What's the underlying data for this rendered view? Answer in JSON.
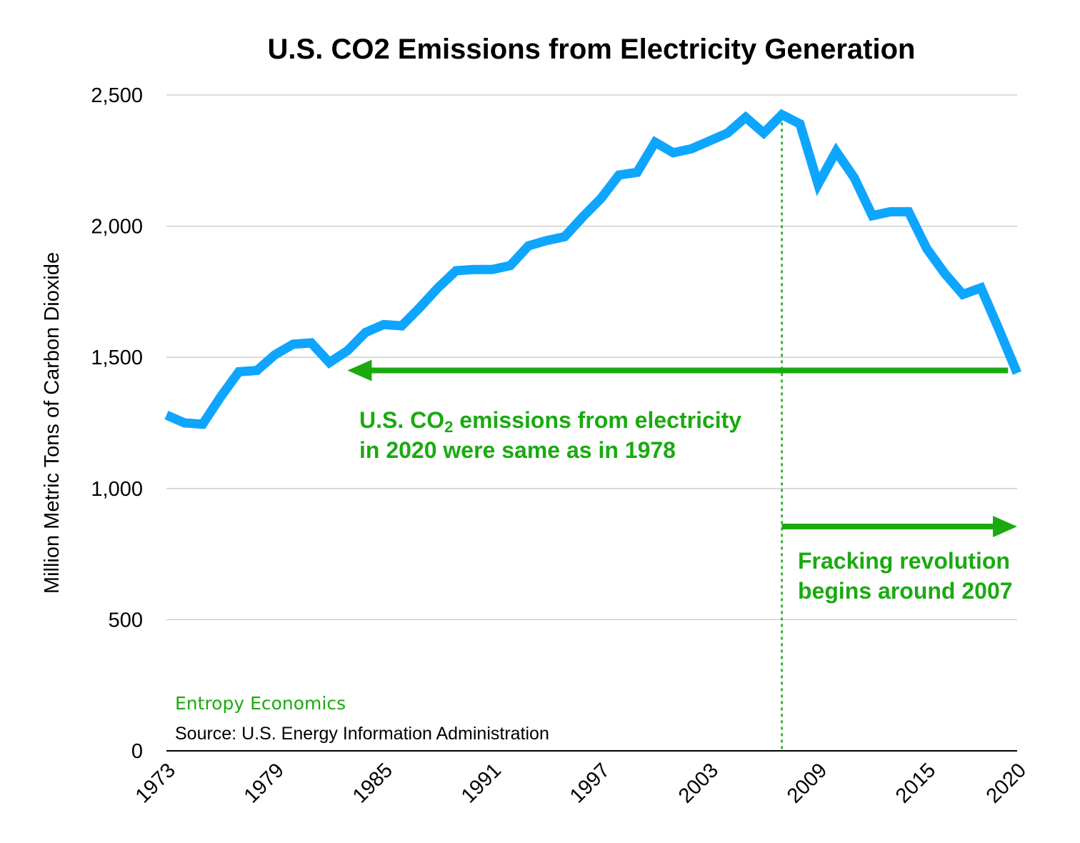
{
  "chart_data": {
    "type": "line",
    "title": "U.S. CO2 Emissions from Electricity Generation",
    "xlabel": "",
    "ylabel": "Million Metric Tons of Carbon Dioxide",
    "ylim": [
      0,
      2500
    ],
    "xlim": [
      1973,
      2020
    ],
    "yticks": [
      0,
      500,
      1000,
      1500,
      2000,
      2500
    ],
    "ytick_labels": [
      "0",
      "500",
      "1,000",
      "1,500",
      "2,000",
      "2,500"
    ],
    "xticks": [
      1973,
      1979,
      1985,
      1991,
      1997,
      2003,
      2009,
      2015,
      2020
    ],
    "xtick_labels": [
      "1973",
      "1979",
      "1985",
      "1991",
      "1997",
      "2003",
      "2009",
      "2015",
      "2020"
    ],
    "grid": "horizontal",
    "line_color": "#0ea5ff",
    "annotation_color": "#1aaa10",
    "series": [
      {
        "name": "",
        "x": [
          1973,
          1974,
          1975,
          1976,
          1977,
          1978,
          1979,
          1980,
          1981,
          1982,
          1983,
          1984,
          1985,
          1986,
          1987,
          1988,
          1989,
          1990,
          1991,
          1992,
          1993,
          1994,
          1995,
          1996,
          1997,
          1998,
          1999,
          2000,
          2001,
          2002,
          2003,
          2004,
          2005,
          2006,
          2007,
          2008,
          2009,
          2010,
          2011,
          2012,
          2013,
          2014,
          2015,
          2016,
          2017,
          2018,
          2019,
          2020
        ],
        "values": [
          1280,
          1250,
          1245,
          1350,
          1445,
          1450,
          1510,
          1550,
          1555,
          1480,
          1525,
          1595,
          1625,
          1620,
          1690,
          1765,
          1830,
          1835,
          1835,
          1850,
          1925,
          1945,
          1960,
          2035,
          2105,
          2195,
          2205,
          2320,
          2280,
          2295,
          2325,
          2355,
          2415,
          2355,
          2425,
          2390,
          2160,
          2285,
          2185,
          2040,
          2055,
          2055,
          1915,
          1820,
          1740,
          1765,
          1605,
          1440
        ]
      }
    ],
    "annotations": {
      "text_1a": "U.S. CO",
      "text_1_sub": "2",
      "text_1b": " emissions from electricity",
      "text_1c": "in 2020 were same as in 1978",
      "text_2a": "Fracking revolution",
      "text_2b": "begins around 2007",
      "vline_year": 2007,
      "left_arrow": {
        "from_year": 2019.5,
        "to_year": 1983,
        "value": 1450
      },
      "right_arrow": {
        "from_year": 2007,
        "to_year": 2020,
        "value": 855
      }
    },
    "brand": "Entropy Economics",
    "source": "Source: U.S. Energy Information Administration"
  }
}
